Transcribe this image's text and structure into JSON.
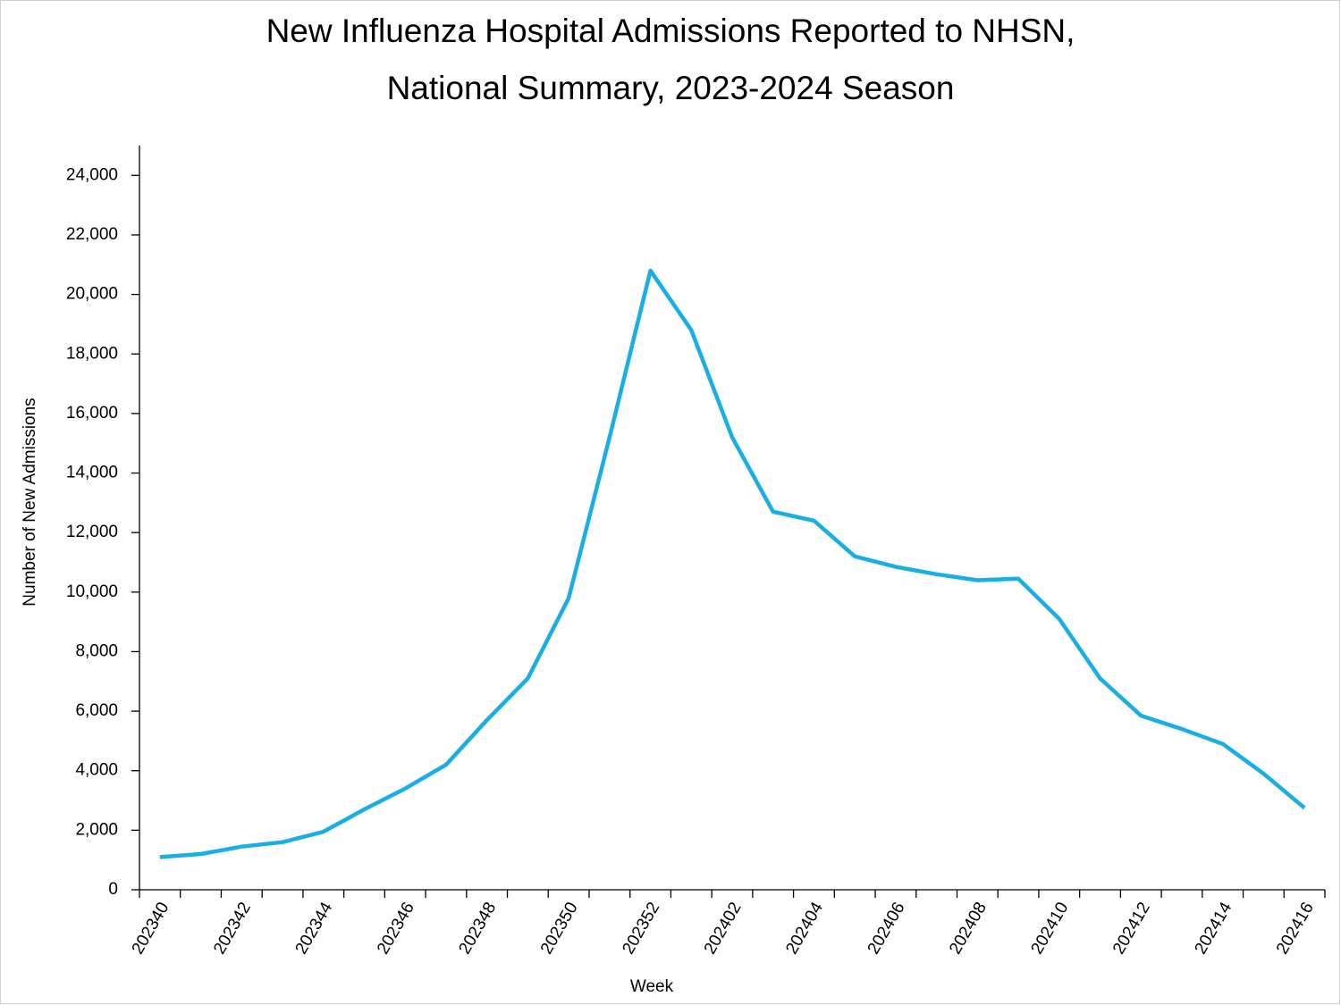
{
  "chart_data": {
    "type": "line",
    "title": [
      "New Influenza Hospital Admissions Reported to NHSN,",
      "National Summary, 2023-2024 Season"
    ],
    "x_label": "Week",
    "y_label": "Number of New Admissions",
    "categories": [
      "202340",
      null,
      "202342",
      null,
      "202344",
      null,
      "202346",
      null,
      "202348",
      null,
      "202350",
      null,
      "202352",
      null,
      "202402",
      null,
      "202404",
      null,
      "202406",
      null,
      "202408",
      null,
      "202410",
      null,
      "202412",
      null,
      "202414",
      null,
      "202416"
    ],
    "series": [
      {
        "name": "New Admissions",
        "color": "#1aaee6",
        "values": [
          1100,
          1200,
          1450,
          1600,
          1950,
          2700,
          3400,
          4200,
          5700,
          7100,
          9800,
          15200,
          20800,
          18800,
          15200,
          12700,
          12400,
          11200,
          10850,
          10600,
          10400,
          10450,
          9100,
          7100,
          5850,
          5400,
          4900,
          3900,
          2750
        ]
      }
    ],
    "ylim": [
      0,
      25000
    ],
    "yticks": [
      0,
      {
        "value": 2000,
        "label": "2,000"
      },
      {
        "value": 4000,
        "label": "4,000"
      },
      {
        "value": 6000,
        "label": "6,000"
      },
      {
        "value": 8000,
        "label": "8,000"
      },
      {
        "value": 10000,
        "label": "10,000"
      },
      {
        "value": 12000,
        "label": "12,000"
      },
      {
        "value": 14000,
        "label": "14,000"
      },
      {
        "value": 16000,
        "label": "16,000"
      },
      {
        "value": 18000,
        "label": "18,000"
      },
      {
        "value": 20000,
        "label": "20,000"
      },
      {
        "value": 22000,
        "label": "22,000"
      },
      {
        "value": 24000,
        "label": "24,000"
      }
    ],
    "grid": false
  }
}
